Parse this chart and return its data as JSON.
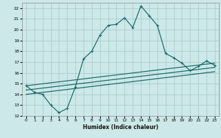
{
  "xlabel": "Humidex (Indice chaleur)",
  "background_color": "#cce8e8",
  "grid_color": "#aacccc",
  "line_color": "#1a6b6b",
  "xlim": [
    -0.5,
    23.5
  ],
  "ylim": [
    12,
    22.5
  ],
  "yticks": [
    12,
    13,
    14,
    15,
    16,
    17,
    18,
    19,
    20,
    21,
    22
  ],
  "xticks": [
    0,
    1,
    2,
    3,
    4,
    5,
    6,
    7,
    8,
    9,
    10,
    11,
    12,
    13,
    14,
    15,
    16,
    17,
    18,
    19,
    20,
    21,
    22,
    23
  ],
  "series1_x": [
    0,
    1,
    2,
    3,
    4,
    5,
    6,
    7,
    8,
    9,
    10,
    11,
    12,
    13,
    14,
    15,
    16,
    17,
    18,
    19,
    20,
    21,
    22,
    23
  ],
  "series1_y": [
    14.8,
    14.2,
    14.0,
    13.0,
    12.3,
    12.7,
    14.7,
    17.3,
    18.0,
    19.5,
    20.4,
    20.5,
    21.1,
    20.2,
    22.2,
    21.3,
    20.4,
    17.8,
    17.4,
    16.9,
    16.2,
    16.6,
    17.1,
    16.7
  ],
  "series2_x": [
    0,
    23
  ],
  "series2_y": [
    14.8,
    16.9
  ],
  "series3_x": [
    0,
    23
  ],
  "series3_y": [
    14.4,
    16.5
  ],
  "series4_x": [
    0,
    23
  ],
  "series4_y": [
    14.0,
    16.1
  ]
}
